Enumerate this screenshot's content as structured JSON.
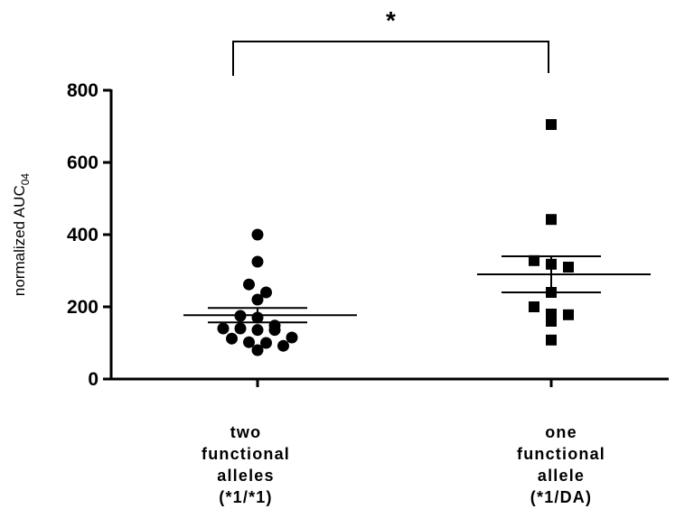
{
  "chart_data": {
    "type": "scatter",
    "ylabel": "normalized AUC",
    "ylabel_subscript": "04",
    "ylim": [
      0,
      800
    ],
    "yticks": [
      "0",
      "200",
      "400",
      "600",
      "800"
    ],
    "categories": [
      [
        "two",
        "functional",
        "alleles",
        "(*1/*1)"
      ],
      [
        "one",
        "functional",
        "allele",
        "(*1/DA)"
      ]
    ],
    "series": [
      {
        "marker": "circle",
        "values": [
          400,
          325,
          262,
          240,
          220,
          175,
          170,
          148,
          140,
          140,
          136,
          136,
          115,
          112,
          102,
          100,
          92,
          80
        ],
        "mean": 177,
        "sem": [
          157,
          197
        ]
      },
      {
        "marker": "square",
        "values": [
          705,
          442,
          328,
          318,
          310,
          240,
          200,
          180,
          178,
          160,
          108
        ],
        "mean": 290,
        "sem": [
          240,
          340
        ]
      }
    ],
    "significance": {
      "between": [
        0,
        1
      ],
      "label": "*"
    },
    "grid": false,
    "legend": "none"
  }
}
